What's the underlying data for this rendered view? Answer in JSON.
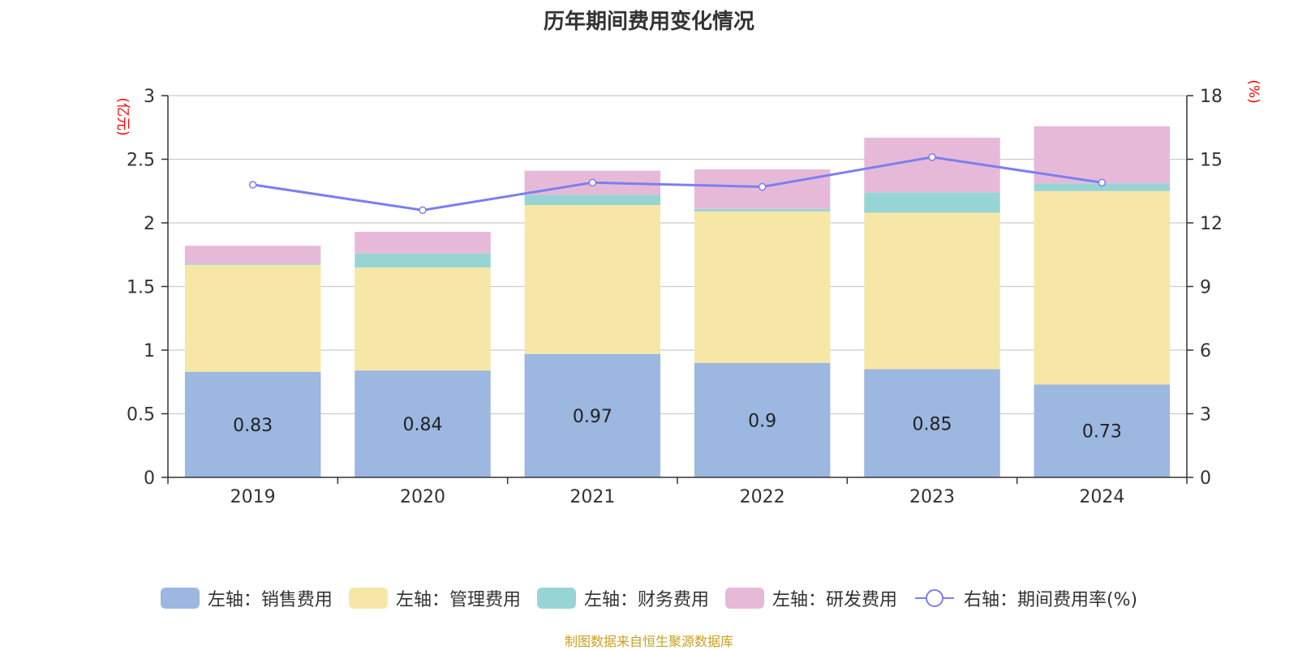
{
  "chart_data": {
    "type": "bar",
    "title": "历年期间费用变化情况",
    "source": "制图数据来自恒生聚源数据库",
    "categories": [
      "2019",
      "2020",
      "2021",
      "2022",
      "2023",
      "2024"
    ],
    "left_axis": {
      "unit": "(亿元)",
      "range": [
        0,
        3
      ],
      "ticks": [
        "0",
        "0.5",
        "1",
        "1.5",
        "2",
        "2.5",
        "3"
      ]
    },
    "right_axis": {
      "unit": "(%)",
      "range": [
        0,
        18
      ],
      "ticks": [
        "0",
        "3",
        "6",
        "9",
        "12",
        "15",
        "18"
      ]
    },
    "grid": true,
    "legend_position": "bottom",
    "series": [
      {
        "name": "左轴：销售费用",
        "axis": "left",
        "stack": true,
        "color": "#9cb7e0",
        "values": [
          0.83,
          0.84,
          0.97,
          0.9,
          0.85,
          0.73
        ],
        "labels_shown": true
      },
      {
        "name": "左轴：管理费用",
        "axis": "left",
        "stack": true,
        "color": "#f7e7a6",
        "values": [
          0.84,
          0.81,
          1.17,
          1.19,
          1.23,
          1.52
        ]
      },
      {
        "name": "左轴：财务费用",
        "axis": "left",
        "stack": true,
        "color": "#97d5d5",
        "values": [
          0.01,
          0.11,
          0.08,
          0.02,
          0.16,
          0.06
        ]
      },
      {
        "name": "左轴：研发费用",
        "axis": "left",
        "stack": true,
        "color": "#e7b9d9",
        "values": [
          0.14,
          0.17,
          0.19,
          0.31,
          0.43,
          0.45
        ]
      },
      {
        "name": "右轴：期间费用率(%)",
        "axis": "right",
        "type": "line",
        "color": "#7b7ff0",
        "values": [
          13.8,
          12.6,
          13.9,
          13.7,
          15.1,
          13.9
        ]
      }
    ]
  },
  "colors": {
    "title": "#333333",
    "axis_unit": "#ff0000",
    "source": "#c9a020",
    "grid": "#cccccc",
    "axis": "#333333"
  }
}
